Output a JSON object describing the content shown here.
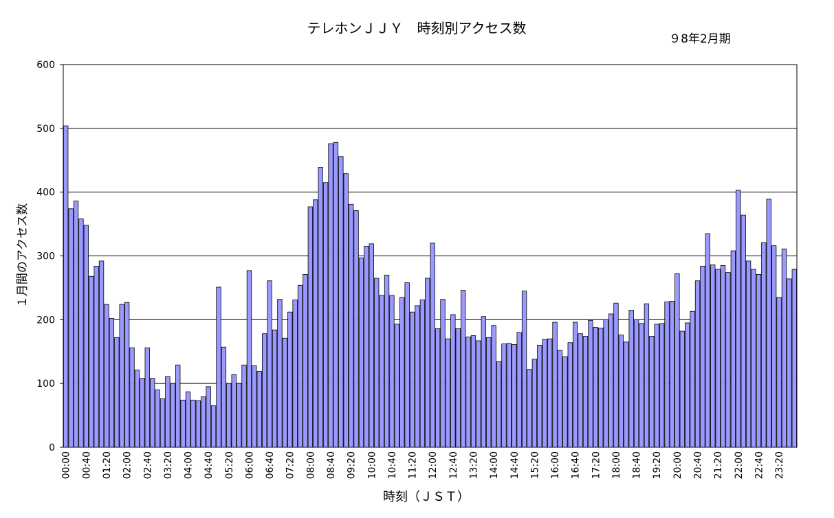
{
  "chart_data": {
    "type": "bar",
    "title": "テレホンＪＪＹ　時刻別アクセス数",
    "subtitle": "９8年2月期",
    "xlabel": "時刻（ＪＳＴ）",
    "ylabel": "１月間のアクセス数",
    "ylim": [
      0,
      600
    ],
    "yticks": [
      0,
      100,
      200,
      300,
      400,
      500,
      600
    ],
    "grid": true,
    "bar_color": "#9999ff",
    "categories": [
      "00:00",
      "00:10",
      "00:20",
      "00:30",
      "00:40",
      "00:50",
      "01:00",
      "01:10",
      "01:20",
      "01:30",
      "01:40",
      "01:50",
      "02:00",
      "02:10",
      "02:20",
      "02:30",
      "02:40",
      "02:50",
      "03:00",
      "03:10",
      "03:20",
      "03:30",
      "03:40",
      "03:50",
      "04:00",
      "04:10",
      "04:20",
      "04:30",
      "04:40",
      "04:50",
      "05:00",
      "05:10",
      "05:20",
      "05:30",
      "05:40",
      "05:50",
      "06:00",
      "06:10",
      "06:20",
      "06:30",
      "06:40",
      "06:50",
      "07:00",
      "07:10",
      "07:20",
      "07:30",
      "07:40",
      "07:50",
      "08:00",
      "08:10",
      "08:20",
      "08:30",
      "08:40",
      "08:50",
      "09:00",
      "09:10",
      "09:20",
      "09:30",
      "09:40",
      "09:50",
      "10:00",
      "10:10",
      "10:20",
      "10:30",
      "10:40",
      "10:50",
      "11:00",
      "11:10",
      "11:20",
      "11:30",
      "11:40",
      "11:50",
      "12:00",
      "12:10",
      "12:20",
      "12:30",
      "12:40",
      "12:50",
      "13:00",
      "13:10",
      "13:20",
      "13:30",
      "13:40",
      "13:50",
      "14:00",
      "14:10",
      "14:20",
      "14:30",
      "14:40",
      "14:50",
      "15:00",
      "15:10",
      "15:20",
      "15:30",
      "15:40",
      "15:50",
      "16:00",
      "16:10",
      "16:20",
      "16:30",
      "16:40",
      "16:50",
      "17:00",
      "17:10",
      "17:20",
      "17:30",
      "17:40",
      "17:50",
      "18:00",
      "18:10",
      "18:20",
      "18:30",
      "18:40",
      "18:50",
      "19:00",
      "19:10",
      "19:20",
      "19:30",
      "19:40",
      "19:50",
      "20:00",
      "20:10",
      "20:20",
      "20:30",
      "20:40",
      "20:50",
      "21:00",
      "21:10",
      "21:20",
      "21:30",
      "21:40",
      "21:50",
      "22:00",
      "22:10",
      "22:20",
      "22:30",
      "22:40",
      "22:50",
      "23:00",
      "23:10",
      "23:20",
      "23:30",
      "23:40",
      "23:50"
    ],
    "tick_labels": [
      "00:00",
      "00:40",
      "01:20",
      "02:00",
      "02:40",
      "03:20",
      "04:00",
      "04:40",
      "05:20",
      "06:00",
      "06:40",
      "07:20",
      "08:00",
      "08:40",
      "09:20",
      "10:00",
      "10:40",
      "11:20",
      "12:00",
      "12:40",
      "13:20",
      "14:00",
      "14:40",
      "15:20",
      "16:00",
      "16:40",
      "17:20",
      "18:00",
      "18:40",
      "19:20",
      "20:00",
      "20:40",
      "21:20",
      "22:00",
      "22:40",
      "23:20"
    ],
    "tick_every": 4,
    "values": [
      504,
      374,
      386,
      358,
      348,
      268,
      284,
      292,
      224,
      202,
      172,
      224,
      227,
      156,
      121,
      108,
      156,
      108,
      90,
      76,
      111,
      100,
      129,
      74,
      87,
      74,
      73,
      79,
      95,
      65,
      251,
      157,
      100,
      114,
      100,
      129,
      277,
      128,
      119,
      178,
      261,
      184,
      232,
      171,
      212,
      231,
      254,
      271,
      377,
      388,
      439,
      415,
      476,
      478,
      456,
      429,
      381,
      371,
      297,
      315,
      319,
      265,
      238,
      270,
      238,
      193,
      235,
      258,
      212,
      222,
      231,
      265,
      320,
      186,
      232,
      170,
      208,
      186,
      246,
      173,
      175,
      167,
      205,
      172,
      191,
      134,
      162,
      163,
      161,
      180,
      245,
      122,
      138,
      160,
      169,
      170,
      196,
      152,
      142,
      164,
      196,
      178,
      174,
      199,
      188,
      187,
      200,
      209,
      226,
      176,
      165,
      215,
      200,
      194,
      225,
      174,
      193,
      194,
      228,
      229,
      272,
      182,
      195,
      213,
      261,
      284,
      335,
      286,
      279,
      285,
      274,
      308,
      403,
      364,
      292,
      279,
      271,
      321,
      389,
      316,
      235,
      311,
      264,
      279
    ]
  }
}
